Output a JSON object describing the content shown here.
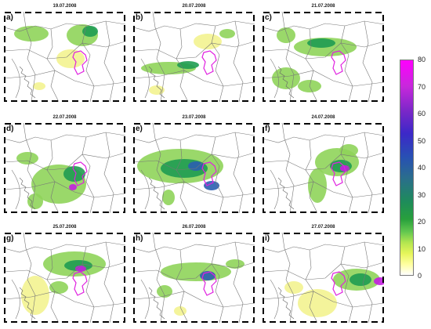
{
  "panels": [
    {
      "letter": "a)",
      "date": "19.07.2008"
    },
    {
      "letter": "b)",
      "date": "20.07.2008"
    },
    {
      "letter": "c)",
      "date": "21.07.2008"
    },
    {
      "letter": "d)",
      "date": "22.07.2008"
    },
    {
      "letter": "e)",
      "date": "23.07.2008"
    },
    {
      "letter": "f)",
      "date": "24.07.2008"
    },
    {
      "letter": "g)",
      "date": "25.07.2008"
    },
    {
      "letter": "h)",
      "date": "26.07.2008"
    },
    {
      "letter": "i)",
      "date": "27.07.2008"
    }
  ],
  "colorbar": {
    "ticks": [
      "80",
      "70",
      "60",
      "50",
      "40",
      "30",
      "20",
      "10",
      "0"
    ],
    "colors": [
      "#ffffff",
      "#ffffa0",
      "#e6f55a",
      "#b4e650",
      "#64c850",
      "#28a03c",
      "#1e8c5a",
      "#2a6e8c",
      "#2850b4",
      "#3c28c8",
      "#7828c8",
      "#c828dc",
      "#ff00ff"
    ]
  }
}
